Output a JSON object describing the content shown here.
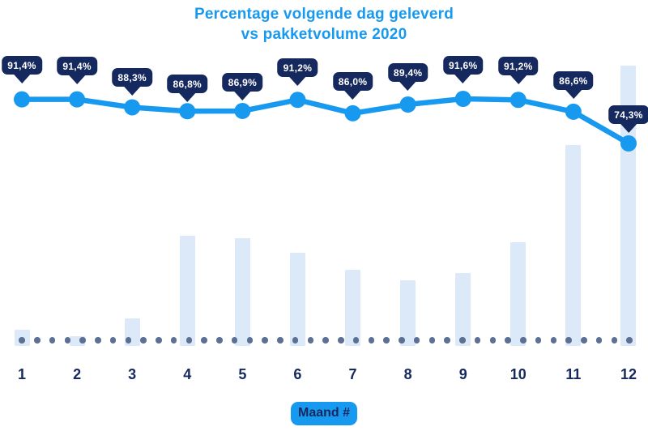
{
  "title": {
    "line1": "Percentage volgende dag geleverd",
    "line2": "vs pakketvolume 2020"
  },
  "xaxis": {
    "label": "Maand #"
  },
  "colors": {
    "accent_blue": "#1899F0",
    "navy": "#16295E",
    "bar_fill": "#DBE9F8",
    "baseline_dot": "#5C7094",
    "badge_text": "#FFFFFF",
    "background": "#FFFFFF"
  },
  "chart_data": {
    "type": "line+bar",
    "title": "Percentage volgende dag geleverd vs pakketvolume 2020",
    "xlabel": "Maand #",
    "categories": [
      "1",
      "2",
      "3",
      "4",
      "5",
      "6",
      "7",
      "8",
      "9",
      "10",
      "11",
      "12"
    ],
    "series": [
      {
        "name": "Percentage volgende dag geleverd",
        "type": "line",
        "unit": "%",
        "values": [
          91.4,
          91.4,
          88.3,
          86.8,
          86.9,
          91.2,
          86.0,
          89.4,
          91.6,
          91.2,
          86.6,
          74.3
        ],
        "labels": [
          "91,4%",
          "91,4%",
          "88,3%",
          "86,8%",
          "86,9%",
          "91,2%",
          "86,0%",
          "89,4%",
          "91,6%",
          "91,2%",
          "86,6%",
          "74,3%"
        ]
      },
      {
        "name": "Pakketvolume 2020",
        "type": "bar",
        "unit": "relative height, no value axis shown",
        "values": [
          20,
          12,
          34,
          136,
          133,
          115,
          94,
          81,
          90,
          128,
          248,
          346
        ]
      }
    ],
    "line_value_range_pct": [
      74.3,
      91.6
    ],
    "legend": "none",
    "grid": "dotted horizontal baseline"
  }
}
